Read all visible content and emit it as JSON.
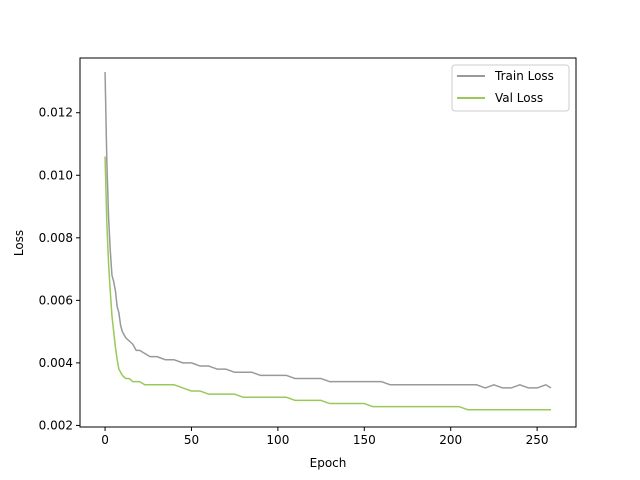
{
  "chart_data": {
    "type": "line",
    "title": "",
    "xlabel": "Epoch",
    "ylabel": "Loss",
    "xlim": [
      -14.5,
      272.5
    ],
    "ylim": [
      0.00195,
      0.01375
    ],
    "xticks": [
      0,
      50,
      100,
      150,
      200,
      250
    ],
    "yticks": [
      0.002,
      0.004,
      0.006,
      0.008,
      0.01,
      0.012
    ],
    "ytick_labels": [
      "0.002",
      "0.004",
      "0.006",
      "0.008",
      "0.010",
      "0.012"
    ],
    "grid": false,
    "legend_position": "top-right",
    "series": [
      {
        "name": "Train Loss",
        "color": "#999999",
        "x": [
          0,
          1,
          2,
          3,
          4,
          5,
          6,
          7,
          8,
          9,
          10,
          12,
          14,
          16,
          18,
          20,
          23,
          26,
          30,
          35,
          40,
          45,
          50,
          55,
          60,
          65,
          70,
          75,
          80,
          85,
          90,
          95,
          100,
          105,
          110,
          115,
          120,
          125,
          130,
          135,
          140,
          145,
          150,
          155,
          160,
          165,
          170,
          175,
          180,
          185,
          190,
          195,
          200,
          205,
          210,
          215,
          220,
          225,
          230,
          235,
          240,
          245,
          250,
          255,
          258
        ],
        "y": [
          0.0133,
          0.0105,
          0.0087,
          0.0076,
          0.0068,
          0.0066,
          0.0063,
          0.0058,
          0.0056,
          0.0052,
          0.005,
          0.0048,
          0.0047,
          0.0046,
          0.0044,
          0.0044,
          0.0043,
          0.0042,
          0.0042,
          0.0041,
          0.0041,
          0.004,
          0.004,
          0.0039,
          0.0039,
          0.0038,
          0.0038,
          0.0037,
          0.0037,
          0.0037,
          0.0036,
          0.0036,
          0.0036,
          0.0036,
          0.0035,
          0.0035,
          0.0035,
          0.0035,
          0.0034,
          0.0034,
          0.0034,
          0.0034,
          0.0034,
          0.0034,
          0.0034,
          0.0033,
          0.0033,
          0.0033,
          0.0033,
          0.0033,
          0.0033,
          0.0033,
          0.0033,
          0.0033,
          0.0033,
          0.0033,
          0.0032,
          0.0033,
          0.0032,
          0.0032,
          0.0033,
          0.0032,
          0.0032,
          0.0033,
          0.0032
        ]
      },
      {
        "name": "Val Loss",
        "color": "#9bc85a",
        "x": [
          0,
          1,
          2,
          3,
          4,
          5,
          6,
          7,
          8,
          9,
          10,
          12,
          14,
          16,
          18,
          20,
          23,
          26,
          30,
          35,
          40,
          45,
          50,
          55,
          60,
          65,
          70,
          75,
          80,
          85,
          90,
          95,
          100,
          105,
          110,
          115,
          120,
          125,
          130,
          135,
          140,
          145,
          150,
          155,
          160,
          165,
          170,
          175,
          180,
          185,
          190,
          195,
          200,
          205,
          210,
          215,
          220,
          225,
          230,
          235,
          240,
          245,
          250,
          255,
          258
        ],
        "y": [
          0.0106,
          0.0085,
          0.0072,
          0.0063,
          0.0055,
          0.005,
          0.0045,
          0.0041,
          0.0038,
          0.0037,
          0.0036,
          0.0035,
          0.0035,
          0.0034,
          0.0034,
          0.0034,
          0.0033,
          0.0033,
          0.0033,
          0.0033,
          0.0033,
          0.0032,
          0.0031,
          0.0031,
          0.003,
          0.003,
          0.003,
          0.003,
          0.0029,
          0.0029,
          0.0029,
          0.0029,
          0.0029,
          0.0029,
          0.0028,
          0.0028,
          0.0028,
          0.0028,
          0.0027,
          0.0027,
          0.0027,
          0.0027,
          0.0027,
          0.0026,
          0.0026,
          0.0026,
          0.0026,
          0.0026,
          0.0026,
          0.0026,
          0.0026,
          0.0026,
          0.0026,
          0.0026,
          0.0025,
          0.0025,
          0.0025,
          0.0025,
          0.0025,
          0.0025,
          0.0025,
          0.0025,
          0.0025,
          0.0025,
          0.0025
        ]
      }
    ]
  }
}
